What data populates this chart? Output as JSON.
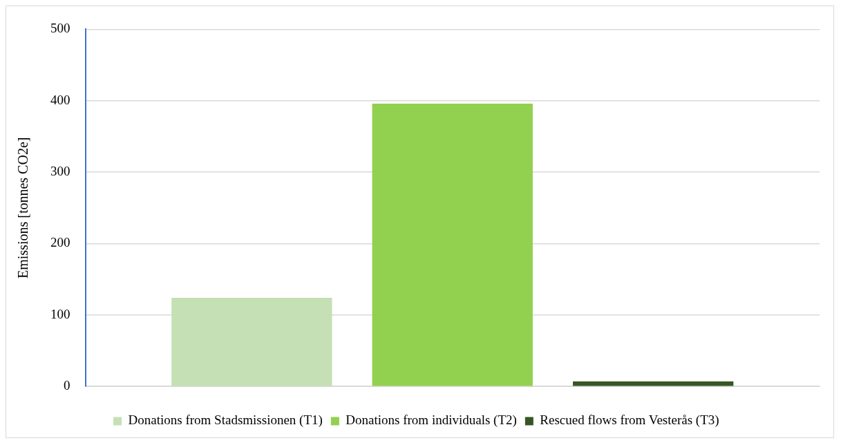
{
  "chart_data": {
    "type": "bar",
    "ylabel": "Emissions [tonnes CO2e]",
    "categories": [
      null
    ],
    "series": [
      {
        "name": "Donations from Stadsmissionen (T1)",
        "color": "#c5e0b4",
        "values": [
          124
        ]
      },
      {
        "name": "Donations from individuals (T2)",
        "color": "#92d050",
        "values": [
          396
        ]
      },
      {
        "name": "Rescued flows from Vesterås (T3)",
        "color": "#375623",
        "values": [
          7
        ]
      }
    ],
    "ylim": [
      0,
      500
    ],
    "yticks": [
      0,
      100,
      200,
      300,
      400,
      500
    ],
    "grid": "y",
    "legend": "bottom"
  }
}
